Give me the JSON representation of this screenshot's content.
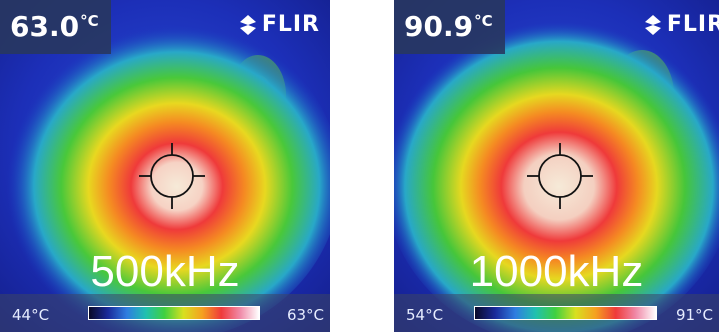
{
  "panels": [
    {
      "temperature": "63.0",
      "unit": "°C",
      "brand": "FLIR",
      "frequency": "500kHz",
      "scale_min": "44°C",
      "scale_max": "63°C"
    },
    {
      "temperature": "90.9",
      "unit": "°C",
      "brand": "FLIR",
      "frequency": "1000kHz",
      "scale_min": "54°C",
      "scale_max": "91°C"
    }
  ],
  "colors": {
    "background": "#1a2bb0",
    "hot_core": "#f4e6d0",
    "hot_ring": "#ef3a3a",
    "warm": "#f5a020",
    "mid": "#40d040"
  },
  "icons": {
    "crosshair": "crosshair-icon",
    "brand": "flir-logo-icon"
  }
}
